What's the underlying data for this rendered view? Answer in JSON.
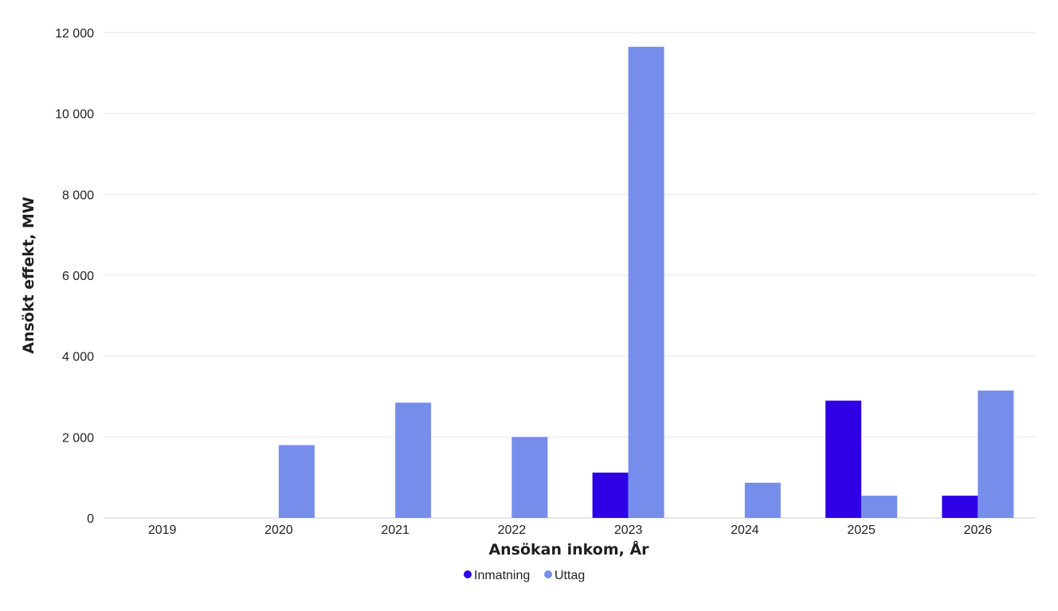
{
  "chart_data": {
    "type": "bar",
    "categories": [
      "2019",
      "2020",
      "2021",
      "2022",
      "2023",
      "2024",
      "2025",
      "2026"
    ],
    "series": [
      {
        "name": "Inmatning",
        "color": "#2f00e6",
        "values": [
          0,
          0,
          0,
          0,
          1120,
          0,
          2900,
          550
        ]
      },
      {
        "name": "Uttag",
        "color": "#768deb",
        "values": [
          0,
          1800,
          2850,
          2000,
          11650,
          870,
          550,
          3150
        ]
      }
    ],
    "xlabel": "Ansökan inkom, År",
    "ylabel": "Ansökt effekt, MW",
    "ylim": [
      0,
      12000
    ],
    "yticks": [
      0,
      2000,
      4000,
      6000,
      8000,
      10000,
      12000
    ],
    "ytick_labels": [
      "0",
      "2 000",
      "4 000",
      "6 000",
      "8 000",
      "10 000",
      "12 000"
    ],
    "grid": true,
    "legend_position": "bottom-center"
  }
}
